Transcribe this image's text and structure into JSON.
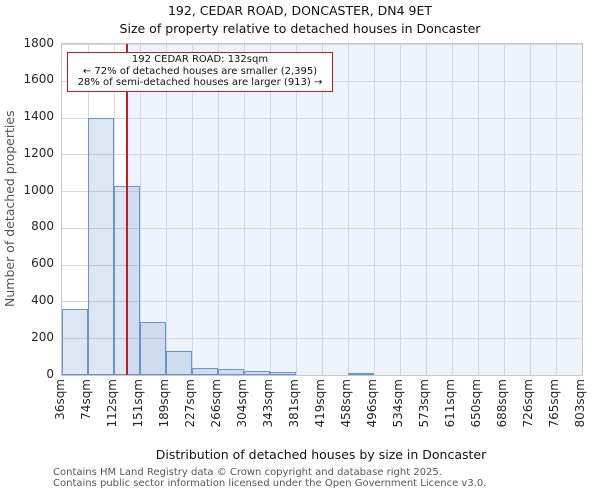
{
  "header": {
    "title": "192, CEDAR ROAD, DONCASTER, DN4 9ET",
    "subtitle": "Size of property relative to detached houses in Doncaster"
  },
  "annotation": {
    "line1": "192 CEDAR ROAD: 132sqm",
    "line2": "← 72% of detached houses are smaller (2,395)",
    "line3": "28% of semi-detached houses are larger (913) →"
  },
  "chart_data": {
    "type": "bar",
    "title": "192, CEDAR ROAD, DONCASTER, DN4 9ET",
    "subtitle": "Size of property relative to detached houses in Doncaster",
    "xlabel": "Distribution of detached houses by size in Doncaster",
    "ylabel": "Number of detached properties",
    "bin_edges_sqm": [
      36,
      74,
      112,
      151,
      189,
      227,
      266,
      304,
      343,
      381,
      419,
      458,
      496,
      534,
      573,
      611,
      650,
      688,
      726,
      765,
      803
    ],
    "tick_labels": [
      "36sqm",
      "74sqm",
      "112sqm",
      "151sqm",
      "189sqm",
      "227sqm",
      "266sqm",
      "304sqm",
      "343sqm",
      "381sqm",
      "419sqm",
      "458sqm",
      "496sqm",
      "534sqm",
      "573sqm",
      "611sqm",
      "650sqm",
      "688sqm",
      "726sqm",
      "765sqm",
      "803sqm"
    ],
    "values": [
      360,
      1400,
      1030,
      290,
      130,
      40,
      35,
      20,
      15,
      0,
      0,
      10,
      0,
      0,
      0,
      0,
      0,
      0,
      0,
      0
    ],
    "ylim": [
      0,
      1800
    ],
    "yticks": [
      0,
      200,
      400,
      600,
      800,
      1000,
      1200,
      1400,
      1600,
      1800
    ],
    "grid": true,
    "legend": "none",
    "marker_line": {
      "value_sqm": 132,
      "color": "#bb2024"
    },
    "shaded_region": {
      "from_sqm": 132,
      "to_edge": true,
      "color": "#eef2fb"
    },
    "bar_fill": "rgba(98,140,199,0.22)",
    "bar_edge": "#6b94cc"
  },
  "footer": {
    "line1": "Contains HM Land Registry data © Crown copyright and database right 2025.",
    "line2": "Contains public sector information licensed under the Open Government Licence v3.0."
  }
}
